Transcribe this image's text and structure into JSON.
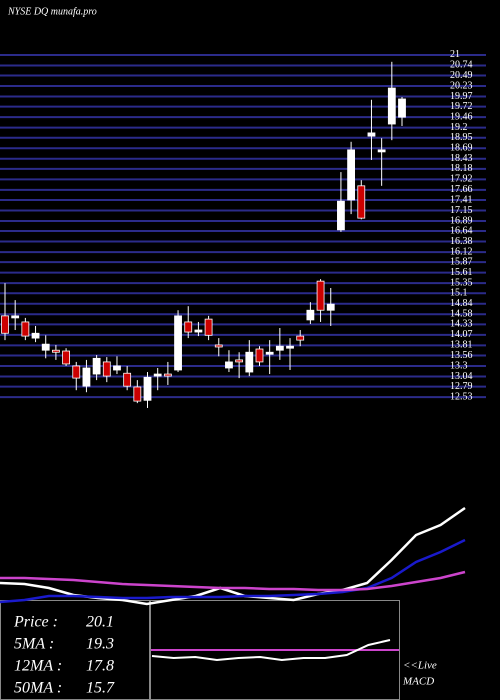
{
  "chart_data": {
    "type": "candlestick",
    "title": "NYSE DQ munafa.pro",
    "ylim": [
      12.21,
      21.37
    ],
    "yticks": [
      21,
      20.74,
      20.49,
      20.23,
      19.97,
      19.72,
      19.46,
      19.2,
      18.95,
      18.69,
      18.43,
      18.18,
      17.92,
      17.66,
      17.41,
      17.15,
      16.89,
      16.64,
      16.38,
      16.12,
      15.87,
      15.61,
      15.35,
      15.1,
      14.84,
      14.58,
      14.33,
      14.07,
      13.81,
      13.56,
      13.3,
      13.04,
      12.79,
      12.53
    ],
    "grid": true,
    "up_color": "#ffffff",
    "down_color": "#cc0000",
    "candles": [
      {
        "o": 14.54,
        "h": 15.35,
        "l": 13.94,
        "c": 14.11
      },
      {
        "o": 14.49,
        "h": 14.93,
        "l": 14.19,
        "c": 14.54
      },
      {
        "o": 14.39,
        "h": 14.49,
        "l": 13.94,
        "c": 14.04
      },
      {
        "o": 13.99,
        "h": 14.29,
        "l": 13.89,
        "c": 14.11
      },
      {
        "o": 13.69,
        "h": 14.06,
        "l": 13.49,
        "c": 13.84
      },
      {
        "o": 13.69,
        "h": 13.82,
        "l": 13.45,
        "c": 13.64
      },
      {
        "o": 13.67,
        "h": 13.74,
        "l": 13.3,
        "c": 13.35
      },
      {
        "o": 13.3,
        "h": 13.4,
        "l": 12.7,
        "c": 13.0
      },
      {
        "o": 12.8,
        "h": 13.45,
        "l": 12.65,
        "c": 13.25
      },
      {
        "o": 13.1,
        "h": 13.57,
        "l": 12.95,
        "c": 13.49
      },
      {
        "o": 13.4,
        "h": 13.52,
        "l": 12.9,
        "c": 13.05
      },
      {
        "o": 13.2,
        "h": 13.54,
        "l": 13.1,
        "c": 13.3
      },
      {
        "o": 13.12,
        "h": 13.3,
        "l": 12.7,
        "c": 12.8
      },
      {
        "o": 12.78,
        "h": 12.95,
        "l": 12.38,
        "c": 12.43
      },
      {
        "o": 12.45,
        "h": 13.15,
        "l": 12.26,
        "c": 13.02
      },
      {
        "o": 13.05,
        "h": 13.25,
        "l": 12.7,
        "c": 13.1
      },
      {
        "o": 13.1,
        "h": 13.4,
        "l": 12.83,
        "c": 13.05
      },
      {
        "o": 13.2,
        "h": 14.68,
        "l": 13.15,
        "c": 14.54
      },
      {
        "o": 14.39,
        "h": 14.78,
        "l": 13.99,
        "c": 14.14
      },
      {
        "o": 14.14,
        "h": 14.39,
        "l": 14.04,
        "c": 14.19
      },
      {
        "o": 14.46,
        "h": 14.54,
        "l": 13.94,
        "c": 14.06
      },
      {
        "o": 13.82,
        "h": 13.99,
        "l": 13.54,
        "c": 13.77
      },
      {
        "o": 13.25,
        "h": 13.69,
        "l": 13.15,
        "c": 13.4
      },
      {
        "o": 13.45,
        "h": 13.64,
        "l": 13.0,
        "c": 13.4
      },
      {
        "o": 13.15,
        "h": 13.94,
        "l": 13.05,
        "c": 13.64
      },
      {
        "o": 13.72,
        "h": 13.79,
        "l": 13.3,
        "c": 13.4
      },
      {
        "o": 13.59,
        "h": 13.94,
        "l": 13.1,
        "c": 13.64
      },
      {
        "o": 13.69,
        "h": 14.24,
        "l": 13.45,
        "c": 13.79
      },
      {
        "o": 13.74,
        "h": 13.99,
        "l": 13.2,
        "c": 13.79
      },
      {
        "o": 14.04,
        "h": 14.19,
        "l": 13.79,
        "c": 13.94
      },
      {
        "o": 14.44,
        "h": 14.88,
        "l": 14.34,
        "c": 14.68
      },
      {
        "o": 15.4,
        "h": 15.45,
        "l": 14.39,
        "c": 14.68
      },
      {
        "o": 14.68,
        "h": 15.23,
        "l": 14.29,
        "c": 14.83
      },
      {
        "o": 16.67,
        "h": 18.1,
        "l": 16.62,
        "c": 17.38
      },
      {
        "o": 17.41,
        "h": 18.85,
        "l": 17.06,
        "c": 18.65
      },
      {
        "o": 17.76,
        "h": 17.9,
        "l": 16.93,
        "c": 16.96
      },
      {
        "o": 18.99,
        "h": 19.89,
        "l": 18.4,
        "c": 19.07
      },
      {
        "o": 18.6,
        "h": 18.94,
        "l": 17.76,
        "c": 18.65
      },
      {
        "o": 19.29,
        "h": 20.83,
        "l": 18.89,
        "c": 20.18
      },
      {
        "o": 19.46,
        "h": 19.96,
        "l": 19.24,
        "c": 19.91
      }
    ],
    "indicator": {
      "ylim": [
        0,
        110
      ],
      "series": [
        {
          "color": "#ffffff",
          "values": [
            27,
            26,
            22,
            15,
            12,
            10,
            6,
            10,
            14,
            22,
            14,
            12,
            10,
            16,
            20,
            27,
            50,
            75,
            85,
            102
          ]
        },
        {
          "color": "#1a1acc",
          "values": [
            8,
            10,
            14,
            14,
            13,
            12,
            12,
            13,
            13,
            13,
            14,
            14,
            15,
            16,
            18,
            22,
            32,
            48,
            58,
            70
          ]
        },
        {
          "color": "#cc44cc",
          "values": [
            32,
            32,
            31,
            30,
            28,
            26,
            25,
            24,
            23,
            22,
            22,
            21,
            21,
            20,
            20,
            21,
            24,
            28,
            32,
            38
          ]
        }
      ]
    },
    "macd": {
      "label": "MACD",
      "ylim": [
        0,
        100
      ],
      "values": [
        44,
        42,
        43,
        40,
        42,
        43,
        40,
        42,
        42,
        45,
        55,
        60
      ],
      "color": "#ffffff",
      "signal": 50,
      "signal_color": "#cc44cc"
    },
    "live": "<<Live",
    "stats": [
      {
        "label": "Price  :",
        "value": 20.1
      },
      {
        "label": "5MA :",
        "value": 19.3
      },
      {
        "label": "12MA :",
        "value": 17.8
      },
      {
        "label": "50MA :",
        "value": 15.7
      }
    ]
  }
}
